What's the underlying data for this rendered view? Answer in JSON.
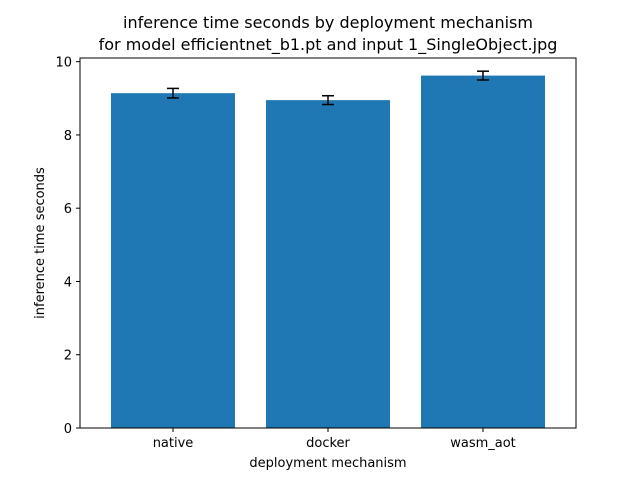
{
  "chart_data": {
    "type": "bar",
    "title": "inference time seconds by deployment mechanism",
    "subtitle": "for model efficientnet_b1.pt and input 1_SingleObject.jpg",
    "xlabel": "deployment mechanism",
    "ylabel": "inference time seconds",
    "categories": [
      "native",
      "docker",
      "wasm_aot"
    ],
    "values": [
      9.14,
      8.95,
      9.62
    ],
    "errors": [
      0.13,
      0.12,
      0.12
    ],
    "ylim": [
      0,
      10.1
    ],
    "yticks": [
      0,
      2,
      4,
      6,
      8,
      10
    ],
    "bar_color": "#1f77b4",
    "error_color": "#000000",
    "grid": false,
    "legend": "none"
  }
}
